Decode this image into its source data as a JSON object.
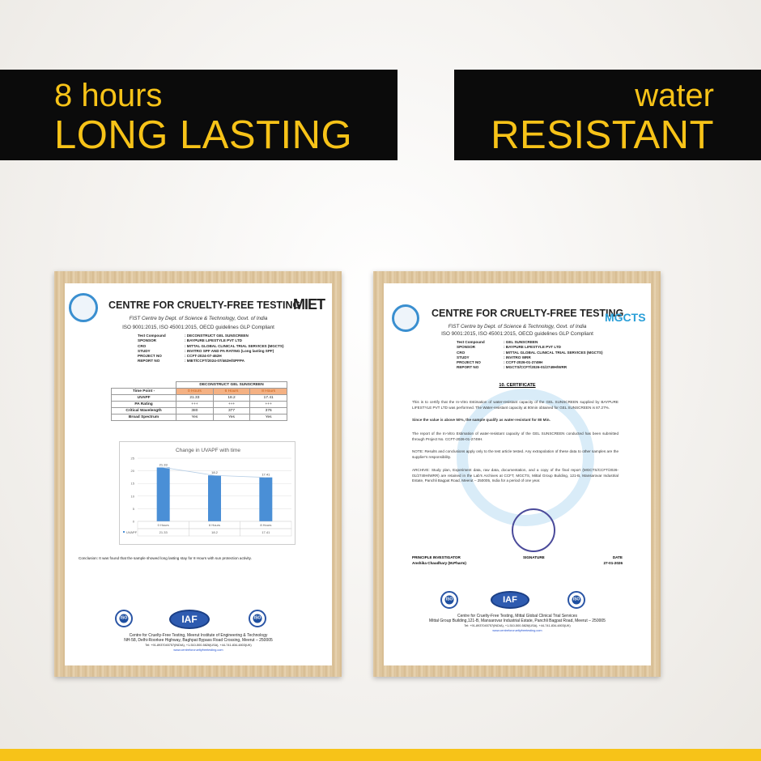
{
  "banners": {
    "left": {
      "line1": "8 hours",
      "line2": "LONG LASTING"
    },
    "right": {
      "line1": "water",
      "line2": "RESISTANT"
    }
  },
  "colors": {
    "accent": "#f7c318",
    "banner_bg": "#0b0b0b",
    "bar": "#4a8fd6",
    "table_header": "#f4b183"
  },
  "left_cert": {
    "title": "CENTRE FOR CRUELTY-FREE TESTING",
    "partner_logo": "MIET",
    "subtitle": "FIST Centre by Dept. of Science & Technology, Govt. of India",
    "iso": "ISO 9001:2015, ISO 45001:2015, OECD guidelines GLP Compliant",
    "meta": [
      {
        "k": "Test Compound",
        "v": ": DECONSTRUCT GEL SUNSCREEN"
      },
      {
        "k": "SPONSOR",
        "v": ": BAYPURE LIFESTYLE PVT LTD"
      },
      {
        "k": "CRO",
        "v": ": MITTAL GLOBAL CLINICAL TRIAL SERVICES (MGCTS)"
      },
      {
        "k": "STUDY",
        "v": ": INVITRO SPF AND PA RATING (Long lasting SPF)"
      },
      {
        "k": "PROJECT NO",
        "v": ": CCFT-2024-07-462H"
      },
      {
        "k": "REPORT NO",
        "v": ": MIET/CCFT/2024-07/462H/SPFPA"
      }
    ],
    "table": {
      "caption": "DECONSTRUCT GEL SUNSCREEN",
      "header": [
        "Time Point -",
        "0 Hours",
        "6 Hours",
        "8 Hours"
      ],
      "rows": [
        [
          "UVAPF",
          "21.33",
          "18.2",
          "17.41"
        ],
        [
          "PA Rating",
          "+++",
          "+++",
          "+++"
        ],
        [
          "Critical Wavelength",
          "380",
          "377",
          "376"
        ],
        [
          "Broad Spectrum",
          "Yes",
          "Yes",
          "Yes"
        ]
      ]
    },
    "chart_data": {
      "type": "bar",
      "title": "Change in UVAPF with time",
      "categories": [
        "0 Hours",
        "6 Hours",
        "8 Hours"
      ],
      "series": [
        {
          "name": "UVAPF",
          "values": [
            21.33,
            18.2,
            17.41
          ]
        }
      ],
      "data_labels": [
        "21.33",
        "18.2",
        "17.41"
      ],
      "yticks": [
        "0",
        "5",
        "10",
        "15",
        "20",
        "25"
      ],
      "ylim": [
        0,
        25
      ],
      "trendline": true,
      "data_table": true
    },
    "conclusion": "Conclusion: It was found that the sample showed long lasting stay for 8 Hours with sun protection activity.",
    "footer": {
      "l1": "Centre for Cruelty-Free Testing, Meerut Institute of Engineering & Technology",
      "l2": "NH-58, Delhi-Roorkee Highway, Baghpat Bypass Road Crossing, Meerut – 250005",
      "l3": "Tel: +91-8937045757(INDIA), +1-510-500-5826(USA), +44-741-834-4803(UK)",
      "url": "www.centreforcrueltyfreetesting.com"
    },
    "badges": [
      "ISO",
      "IAF",
      "ISO"
    ]
  },
  "right_cert": {
    "title": "CENTRE FOR CRUELTY-FREE TESTING",
    "partner_logo": "MGCTS",
    "subtitle": "FIST Centre by Dept. of Science & Technology, Govt. of India",
    "iso": "ISO 9001:2015, ISO 45001:2015, OECD guidelines GLP Compliant",
    "meta": [
      {
        "k": "Test Compound",
        "v": ": GEL SUNSCREEN"
      },
      {
        "k": "SPONSOR",
        "v": ": BAYPURE LIFESTYLE PVT LTD"
      },
      {
        "k": "CRO",
        "v": ": MITTAL GLOBAL CLINICAL TRIAL SERVICES (MGCTS)"
      },
      {
        "k": "STUDY",
        "v": ": INVITRO WRR"
      },
      {
        "k": "PROJECT NO",
        "v": ": CCFT-2026-01-2749H"
      },
      {
        "k": "REPORT NO",
        "v": ": MGCTS/CCFT/2026-01/2749H/WRR"
      }
    ],
    "heading": "10. CERTIFICATE",
    "paragraphs": [
      "This is to certify that the In-Vitro Estimation of water-resistant capacity of the GEL SUNSCREEN supplied by BAYPURE LIFESTYLE PVT LTD was performed. The Water-resistant capacity at 80min obtained for GEL SUNSCREEN is 87.27%.",
      "Since the value is above 50%, the sample qualify as water-resistant for 80 Min.",
      "The report of the In-Vitro Estimation of water-resistant capacity of the GEL SUNSCREEN conducted has been submitted through Project No. CCFT-2026-01-2749H.",
      "NOTE: Results and conclusions apply only to the test article tested. Any extrapolation of these data to other samples are the supplier's responsibility.",
      "ARCHIVE: Study plan, Experiment data, raw data, documentation, and a copy of the final report (MGCTS/CCFT/2026-01/2749H/WRR) are retained in the Lab's Archives at CCFT, MGCTS, Mittal Group Building, 121-B, Mansarovar Industrial Estate, Panchli Bagpat Road, Meerut – 250005, India for a period of one year."
    ],
    "signatures": {
      "pi_label": "PRINCIPLE INVESTIGATOR",
      "pi_name": "Anshika Chaudhary (M.Pharm)",
      "sig_label": "SIGNATURE",
      "date_label": "DATE",
      "date": "27-01-2026"
    },
    "footer": {
      "l1": "Centre for Cruelty-Free Testing, Mittal Global Clinical Trial Services",
      "l2": "Mittal Group Building,121-B, Mansarovar Industrial Estate, Panchli Bagpat Road, Meerut – 250005",
      "l3": "Tel: +91-8937045757(INDIA), +1-510-500-5826(USA), +44-741-834-4803(UK)",
      "url": "www.centreforcrueltyfreetesting.com"
    },
    "badges": [
      "ISO",
      "IAF",
      "ISO"
    ]
  }
}
